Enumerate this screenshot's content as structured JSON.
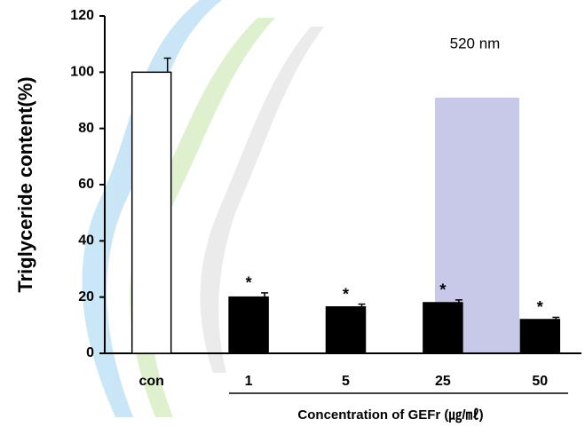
{
  "chart_data": {
    "type": "bar",
    "y_label": "Triglyceride content(%)",
    "x_label": "Concentration of GEFr (㎍/㎖)",
    "annotation": "520 nm",
    "categories": [
      "con",
      "1",
      "5",
      "25",
      "50"
    ],
    "values": [
      100,
      20,
      16.5,
      18,
      12
    ],
    "errors": [
      5,
      1.5,
      1,
      1,
      0.8
    ],
    "colors": [
      "#ffffff",
      "#000000",
      "#000000",
      "#000000",
      "#000000"
    ],
    "significance": [
      null,
      "*",
      "*",
      "*",
      "*"
    ],
    "ylim": [
      0,
      120
    ],
    "yticks": [
      0,
      20,
      40,
      60,
      80,
      100,
      120
    ]
  }
}
